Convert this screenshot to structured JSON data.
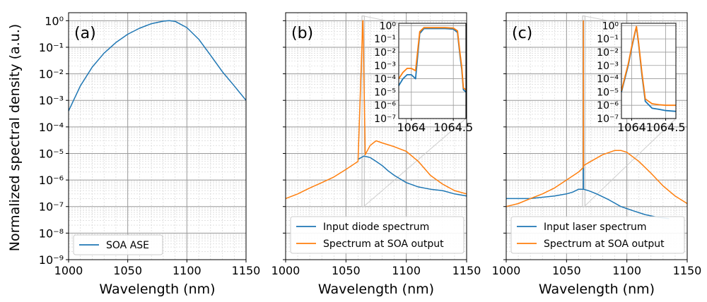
{
  "figure": {
    "ylabel": "Normalized spectral density (a.u.)",
    "xlabel": "Wavelength (nm)"
  },
  "chart_data": [
    {
      "type": "line",
      "panel_label": "(a)",
      "xlabel": "Wavelength (nm)",
      "ylabel": "Normalized spectral density (a.u.)",
      "xlim": [
        1000,
        1150
      ],
      "ylim": [
        1e-09,
        2
      ],
      "yscale": "log",
      "xticks": [
        "1000",
        "1050",
        "1100",
        "1150"
      ],
      "grid": true,
      "legend_position": "lower-left",
      "series": [
        {
          "name": "SOA ASE",
          "color": "#1f77b4",
          "x": [
            1000,
            1010,
            1020,
            1030,
            1040,
            1050,
            1060,
            1070,
            1080,
            1085,
            1090,
            1100,
            1110,
            1120,
            1130,
            1140,
            1150
          ],
          "y": [
            0.0004,
            0.0035,
            0.018,
            0.06,
            0.15,
            0.31,
            0.52,
            0.77,
            0.96,
            1.0,
            0.95,
            0.55,
            0.2,
            0.05,
            0.012,
            0.0035,
            0.001
          ]
        }
      ]
    },
    {
      "type": "line",
      "panel_label": "(b)",
      "xlabel": "Wavelength (nm)",
      "xlim": [
        1000,
        1150
      ],
      "ylim": [
        1e-09,
        2
      ],
      "yscale": "log",
      "xticks": [
        "1000",
        "1050",
        "1100",
        "1150"
      ],
      "grid": true,
      "legend_position": "lower-right",
      "series": [
        {
          "name": "Input diode spectrum",
          "color": "#1f77b4",
          "x": [
            1060,
            1065,
            1070,
            1075,
            1080,
            1085,
            1090,
            1100,
            1110,
            1120,
            1130,
            1140,
            1150
          ],
          "y": [
            6e-06,
            8e-06,
            7e-06,
            5e-06,
            3.5e-06,
            2.2e-06,
            1.5e-06,
            8e-07,
            5.5e-07,
            4.5e-07,
            4e-07,
            3e-07,
            2.5e-07
          ]
        },
        {
          "name": "Spectrum at SOA output",
          "color": "#ff7f0e",
          "x": [
            1000,
            1010,
            1020,
            1030,
            1040,
            1050,
            1060,
            1063.9,
            1064.1,
            1066,
            1070,
            1075,
            1080,
            1090,
            1100,
            1110,
            1120,
            1130,
            1140,
            1150
          ],
          "y": [
            2e-07,
            3e-07,
            5e-07,
            8e-07,
            1.3e-06,
            2.5e-06,
            5e-06,
            1.0,
            1.0,
            9e-06,
            2e-05,
            3e-05,
            2.5e-05,
            1.8e-05,
            1.2e-05,
            5e-06,
            1.5e-06,
            7e-07,
            4e-07,
            3e-07
          ]
        }
      ],
      "inset": {
        "xlim": [
          1063.85,
          1064.65
        ],
        "ylim": [
          1e-07,
          1.5
        ],
        "xticks": [
          "1064",
          "1064.5"
        ],
        "series": [
          {
            "name": "Input diode spectrum",
            "color": "#1f77b4",
            "x": [
              1063.85,
              1063.9,
              1063.95,
              1064.0,
              1064.05,
              1064.1,
              1064.15,
              1064.2,
              1064.25,
              1064.3,
              1064.4,
              1064.5,
              1064.55,
              1064.58,
              1064.6,
              1064.62,
              1064.65
            ],
            "y": [
              3e-05,
              0.0001,
              0.0002,
              0.0002,
              0.0001,
              0.25,
              0.6,
              0.6,
              0.6,
              0.6,
              0.6,
              0.55,
              0.3,
              0.005,
              0.0005,
              1.5e-05,
              1e-05
            ]
          },
          {
            "name": "Spectrum at SOA output",
            "color": "#ff7f0e",
            "x": [
              1063.85,
              1063.9,
              1063.95,
              1064.0,
              1064.05,
              1064.1,
              1064.15,
              1064.2,
              1064.25,
              1064.3,
              1064.4,
              1064.5,
              1064.55,
              1064.58,
              1064.6,
              1064.62,
              1064.65
            ],
            "y": [
              0.0001,
              0.0003,
              0.0006,
              0.0006,
              0.0004,
              0.35,
              0.7,
              0.7,
              0.7,
              0.7,
              0.7,
              0.65,
              0.4,
              0.008,
              0.0008,
              2e-05,
              1.5e-05
            ]
          }
        ]
      }
    },
    {
      "type": "line",
      "panel_label": "(c)",
      "xlabel": "Wavelength (nm)",
      "xlim": [
        1000,
        1150
      ],
      "ylim": [
        1e-09,
        2
      ],
      "yscale": "log",
      "xticks": [
        "1000",
        "1050",
        "1100",
        "1150"
      ],
      "grid": true,
      "legend_position": "lower-right",
      "series": [
        {
          "name": "Input laser spectrum",
          "color": "#1f77b4",
          "x": [
            1000,
            1020,
            1040,
            1050,
            1055,
            1060,
            1063.9,
            1064.0,
            1064.1,
            1068,
            1075,
            1085,
            1095,
            1105,
            1115,
            1125,
            1135
          ],
          "y": [
            2e-07,
            2e-07,
            2.5e-07,
            3e-07,
            3.5e-07,
            4.5e-07,
            4.5e-07,
            1.0,
            4.5e-07,
            4e-07,
            3e-07,
            1.8e-07,
            1e-07,
            7e-08,
            5e-08,
            4e-08,
            3.5e-08
          ]
        },
        {
          "name": "Spectrum at SOA output",
          "color": "#ff7f0e",
          "x": [
            1000,
            1010,
            1020,
            1030,
            1040,
            1050,
            1060,
            1063.9,
            1064.0,
            1064.1,
            1070,
            1080,
            1090,
            1095,
            1100,
            1110,
            1120,
            1130,
            1140,
            1150
          ],
          "y": [
            1e-07,
            1.3e-07,
            2e-07,
            3e-07,
            5e-07,
            1e-06,
            2e-06,
            3e-06,
            1.0,
            3.5e-06,
            5e-06,
            9e-06,
            1.3e-05,
            1.3e-05,
            1.1e-05,
            5e-06,
            1.8e-06,
            6e-07,
            2.5e-07,
            1.3e-07
          ]
        }
      ],
      "inset": {
        "xlim": [
          1063.85,
          1064.65
        ],
        "ylim": [
          1e-07,
          1.5
        ],
        "xticks": [
          "1064",
          "1064.5"
        ],
        "series": [
          {
            "name": "Input laser spectrum",
            "color": "#1f77b4",
            "x": [
              1063.85,
              1063.9,
              1063.95,
              1064.0,
              1064.05,
              1064.07,
              1064.1,
              1064.15,
              1064.2,
              1064.3,
              1064.4,
              1064.5,
              1064.65
            ],
            "y": [
              1e-05,
              0.0001,
              0.001,
              0.02,
              0.3,
              0.8,
              0.05,
              0.0002,
              2e-06,
              6e-07,
              5e-07,
              4e-07,
              3.5e-07
            ]
          },
          {
            "name": "Spectrum at SOA output",
            "color": "#ff7f0e",
            "x": [
              1063.85,
              1063.9,
              1063.95,
              1064.0,
              1064.05,
              1064.07,
              1064.1,
              1064.15,
              1064.2,
              1064.3,
              1064.4,
              1064.5,
              1064.65
            ],
            "y": [
              1.2e-05,
              0.00013,
              0.0013,
              0.025,
              0.35,
              0.85,
              0.06,
              0.0003,
              3e-06,
              1.3e-06,
              1.1e-06,
              1e-06,
              1e-06
            ]
          }
        ]
      }
    }
  ]
}
